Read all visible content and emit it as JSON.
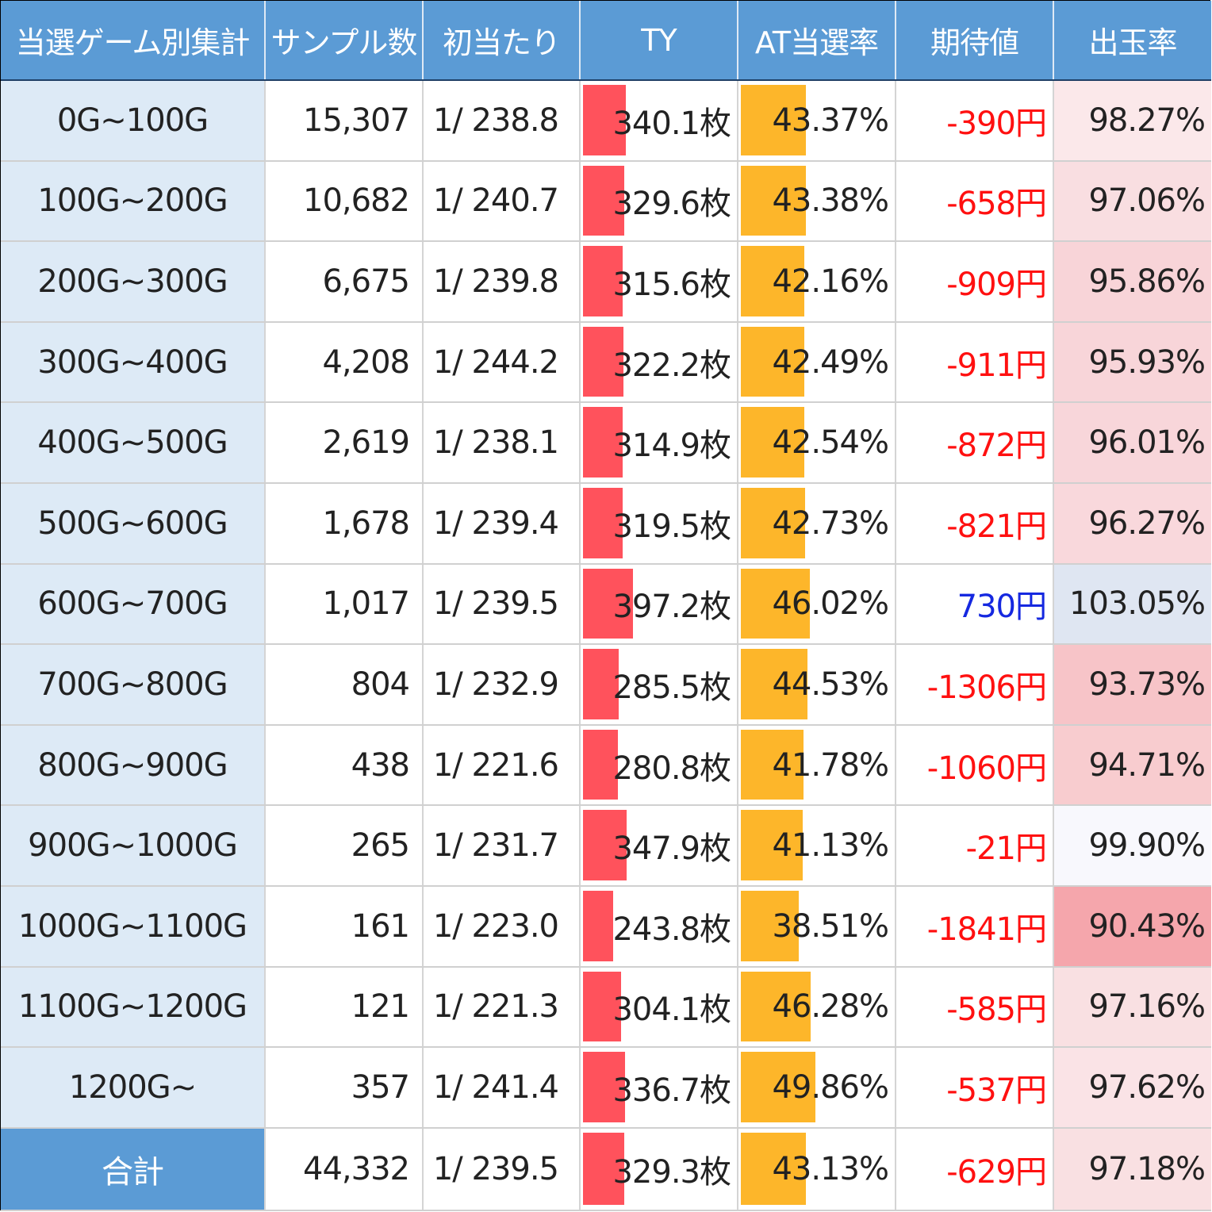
{
  "headers": [
    "当選ゲーム別集計",
    "サンプル数",
    "初当たり",
    "TY",
    "AT当選率",
    "期待値",
    "出玉率"
  ],
  "colors": {
    "header_bg": "#5b9bd5",
    "range_bg": "#ddeaf6",
    "ty_bar": "#ff525c",
    "at_bar": "#fdb62a",
    "negative_text": "#ff1010",
    "positive_text": "#1528e0"
  },
  "ranges": {
    "ty_max": 420,
    "at_max": 50
  },
  "rows": [
    {
      "range": "0G~100G",
      "samples": "15,307",
      "first_hit": "1/ 238.8",
      "ty": "340.1枚",
      "ty_value": 340.1,
      "at_rate": "43.37%",
      "at_value": 43.37,
      "ev": "-390円",
      "ev_sign": "neg",
      "payout": "98.27%",
      "payout_bg": "#fbe8ea"
    },
    {
      "range": "100G~200G",
      "samples": "10,682",
      "first_hit": "1/ 240.7",
      "ty": "329.6枚",
      "ty_value": 329.6,
      "at_rate": "43.38%",
      "at_value": 43.38,
      "ev": "-658円",
      "ev_sign": "neg",
      "payout": "97.06%",
      "payout_bg": "#f9dee1"
    },
    {
      "range": "200G~300G",
      "samples": "6,675",
      "first_hit": "1/ 239.8",
      "ty": "315.6枚",
      "ty_value": 315.6,
      "at_rate": "42.16%",
      "at_value": 42.16,
      "ev": "-909円",
      "ev_sign": "neg",
      "payout": "95.86%",
      "payout_bg": "#f8d4d8"
    },
    {
      "range": "300G~400G",
      "samples": "4,208",
      "first_hit": "1/ 244.2",
      "ty": "322.2枚",
      "ty_value": 322.2,
      "at_rate": "42.49%",
      "at_value": 42.49,
      "ev": "-911円",
      "ev_sign": "neg",
      "payout": "95.93%",
      "payout_bg": "#f8d5d9"
    },
    {
      "range": "400G~500G",
      "samples": "2,619",
      "first_hit": "1/ 238.1",
      "ty": "314.9枚",
      "ty_value": 314.9,
      "at_rate": "42.54%",
      "at_value": 42.54,
      "ev": "-872円",
      "ev_sign": "neg",
      "payout": "96.01%",
      "payout_bg": "#f8d6da"
    },
    {
      "range": "500G~600G",
      "samples": "1,678",
      "first_hit": "1/ 239.4",
      "ty": "319.5枚",
      "ty_value": 319.5,
      "at_rate": "42.73%",
      "at_value": 42.73,
      "ev": "-821円",
      "ev_sign": "neg",
      "payout": "96.27%",
      "payout_bg": "#f9d8dc"
    },
    {
      "range": "600G~700G",
      "samples": "1,017",
      "first_hit": "1/ 239.5",
      "ty": "397.2枚",
      "ty_value": 397.2,
      "at_rate": "46.02%",
      "at_value": 46.02,
      "ev": "730円",
      "ev_sign": "pos",
      "payout": "103.05%",
      "payout_bg": "#dfe6f2"
    },
    {
      "range": "700G~800G",
      "samples": "804",
      "first_hit": "1/ 232.9",
      "ty": "285.5枚",
      "ty_value": 285.5,
      "at_rate": "44.53%",
      "at_value": 44.53,
      "ev": "-1306円",
      "ev_sign": "neg",
      "payout": "93.73%",
      "payout_bg": "#f7c4c8"
    },
    {
      "range": "800G~900G",
      "samples": "438",
      "first_hit": "1/ 221.6",
      "ty": "280.8枚",
      "ty_value": 280.8,
      "at_rate": "41.78%",
      "at_value": 41.78,
      "ev": "-1060円",
      "ev_sign": "neg",
      "payout": "94.71%",
      "payout_bg": "#f8cccf"
    },
    {
      "range": "900G~1000G",
      "samples": "265",
      "first_hit": "1/ 231.7",
      "ty": "347.9枚",
      "ty_value": 347.9,
      "at_rate": "41.13%",
      "at_value": 41.13,
      "ev": "-21円",
      "ev_sign": "neg",
      "payout": "99.90%",
      "payout_bg": "#f8f8fd"
    },
    {
      "range": "1000G~1100G",
      "samples": "161",
      "first_hit": "1/ 223.0",
      "ty": "243.8枚",
      "ty_value": 243.8,
      "at_rate": "38.51%",
      "at_value": 38.51,
      "ev": "-1841円",
      "ev_sign": "neg",
      "payout": "90.43%",
      "payout_bg": "#f5a6ac"
    },
    {
      "range": "1100G~1200G",
      "samples": "121",
      "first_hit": "1/ 221.3",
      "ty": "304.1枚",
      "ty_value": 304.1,
      "at_rate": "46.28%",
      "at_value": 46.28,
      "ev": "-585円",
      "ev_sign": "neg",
      "payout": "97.16%",
      "payout_bg": "#f9e0e2"
    },
    {
      "range": "1200G~",
      "samples": "357",
      "first_hit": "1/ 241.4",
      "ty": "336.7枚",
      "ty_value": 336.7,
      "at_rate": "49.86%",
      "at_value": 49.86,
      "ev": "-537円",
      "ev_sign": "neg",
      "payout": "97.62%",
      "payout_bg": "#fae3e6"
    }
  ],
  "total": {
    "label": "合計",
    "samples": "44,332",
    "first_hit": "1/ 239.5",
    "ty": "329.3枚",
    "ty_value": 329.3,
    "at_rate": "43.13%",
    "at_value": 43.13,
    "ev": "-629円",
    "ev_sign": "neg",
    "payout": "97.18%",
    "payout_bg": "#f9e0e2"
  }
}
